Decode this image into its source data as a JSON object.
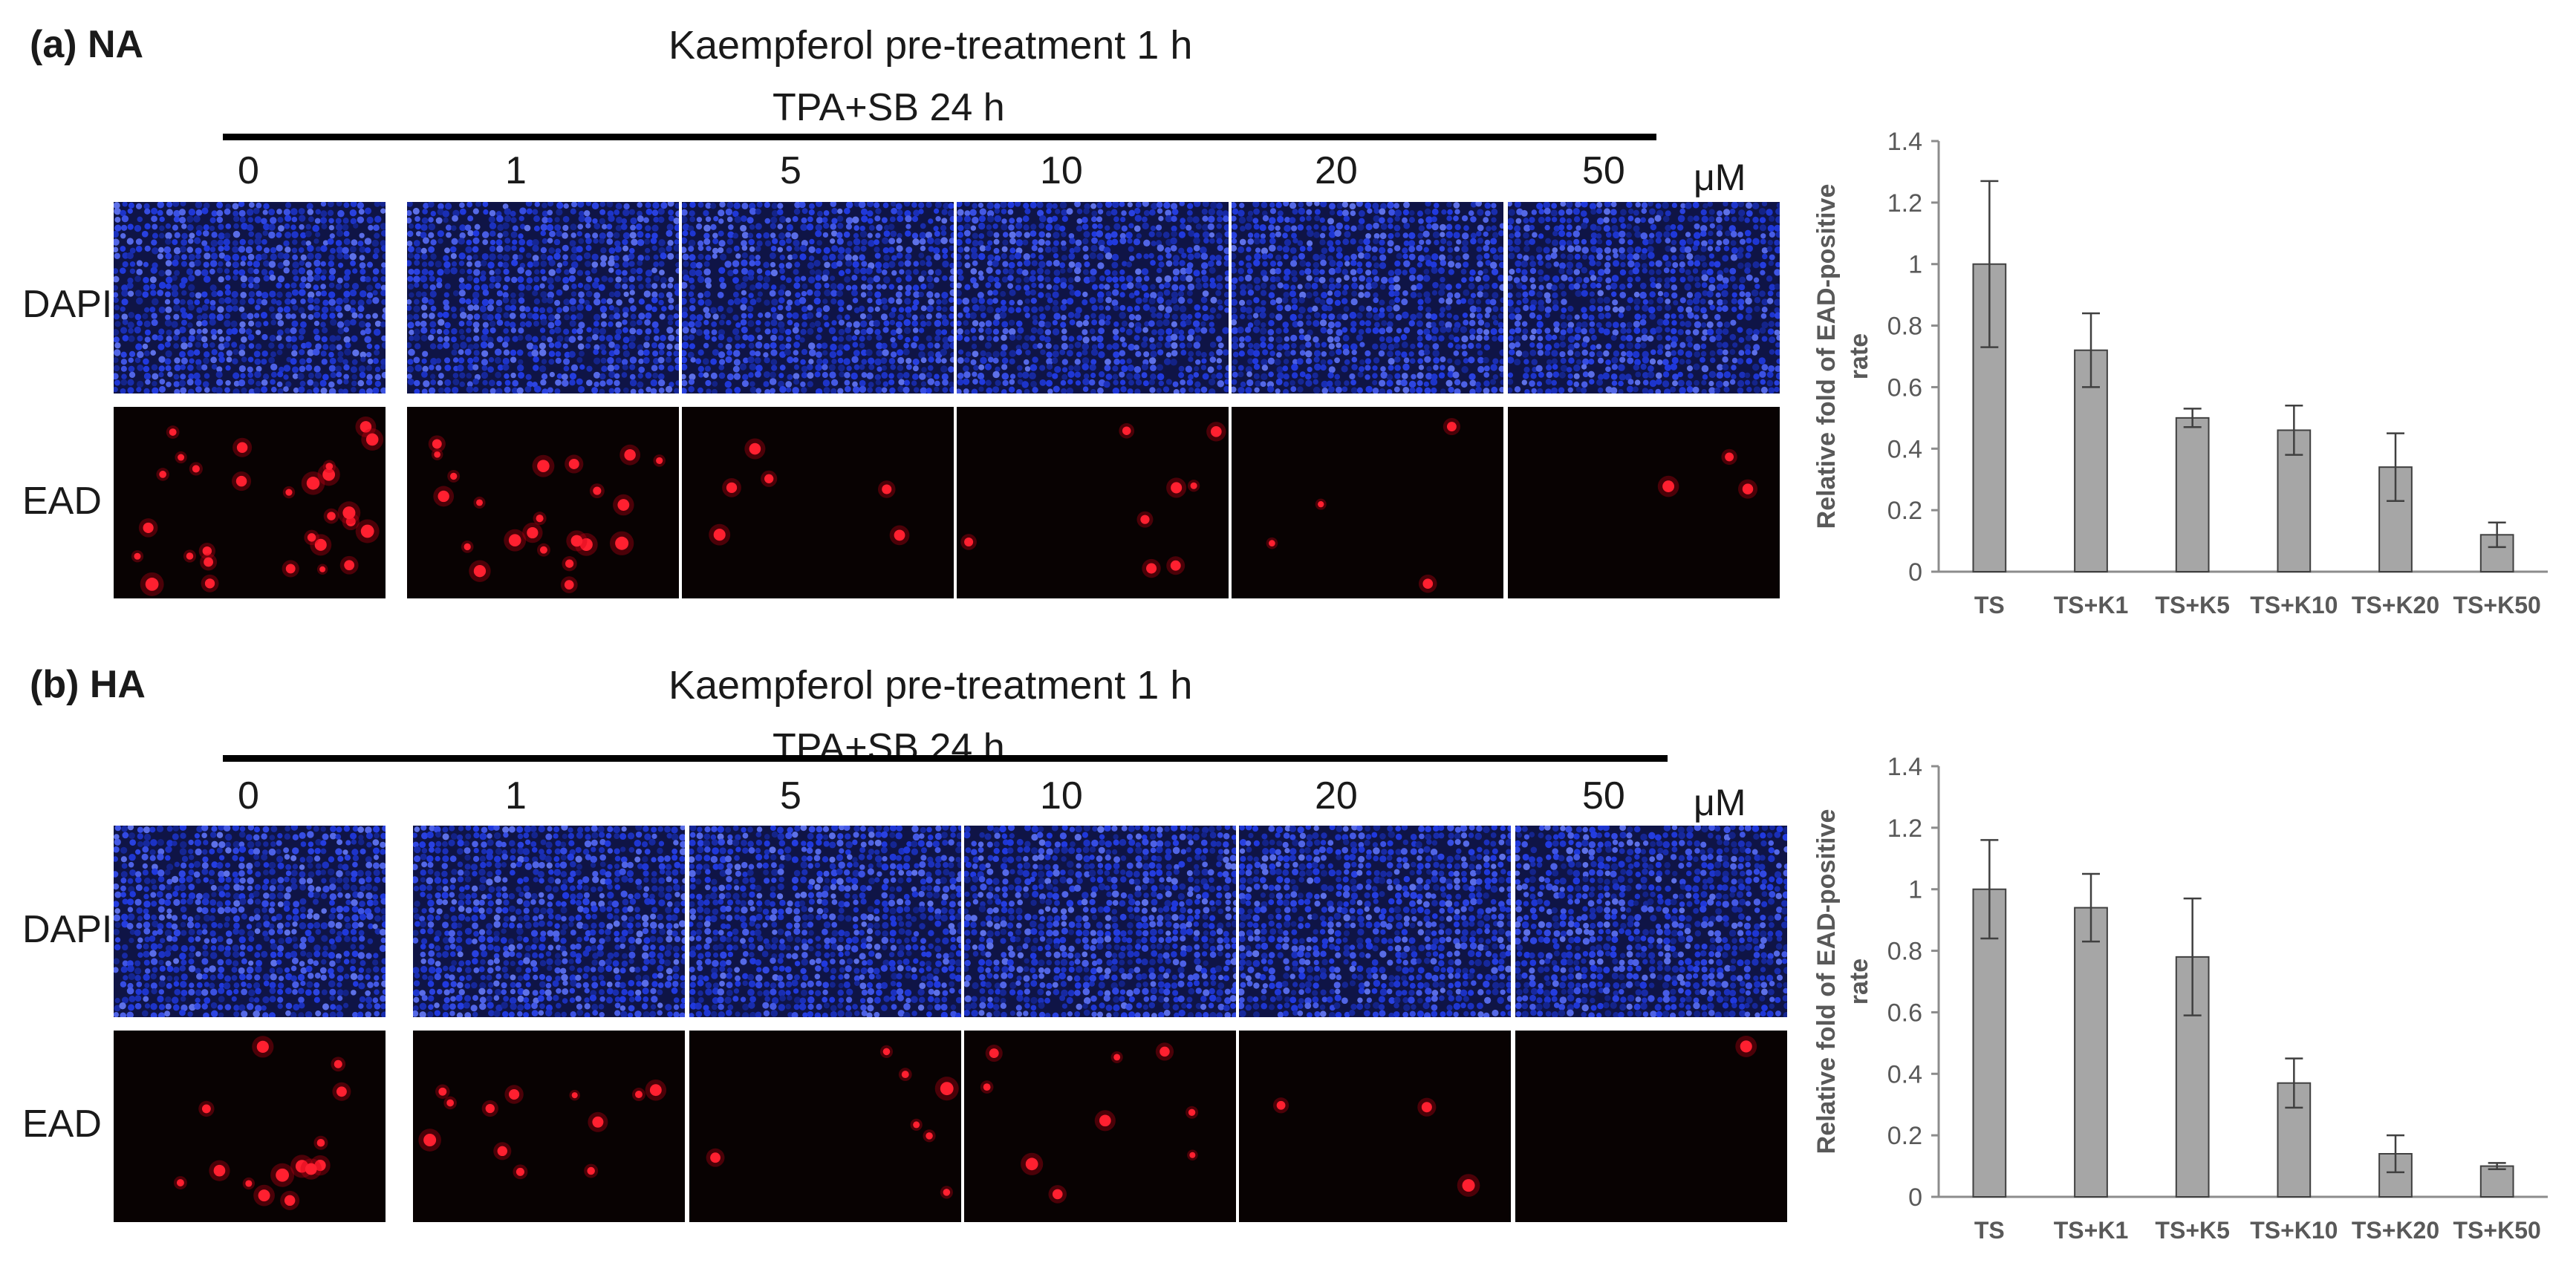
{
  "panels": [
    {
      "label": "(a) NA",
      "pretreatment": "Kaempferol pre-treatment 1 h",
      "treatment": "TPA+SB 24 h",
      "concentrations": [
        "0",
        "1",
        "5",
        "10",
        "20",
        "50"
      ],
      "unit": "μM",
      "rows": [
        "DAPI",
        "EAD"
      ],
      "ead_spot_density": [
        28,
        22,
        6,
        8,
        4,
        3
      ],
      "chart_data": {
        "type": "bar",
        "categories": [
          "TS",
          "TS+K1",
          "TS+K5",
          "TS+K10",
          "TS+K20",
          "TS+K50"
        ],
        "values": [
          1.0,
          0.72,
          0.5,
          0.46,
          0.34,
          0.12
        ],
        "errors": [
          0.27,
          0.12,
          0.03,
          0.08,
          0.11,
          0.04
        ],
        "ylabel": "Relative fold of EAD-positive rate",
        "ylim": [
          0,
          1.4
        ],
        "yticks": [
          "0",
          "0.2",
          "0.4",
          "0.6",
          "0.8",
          "1",
          "1.2",
          "1.4"
        ],
        "bar_color": "#a6a6a6"
      }
    },
    {
      "label": "(b) HA",
      "pretreatment": "Kaempferol  pre-treatment 1 h",
      "treatment": "TPA+SB 24 h",
      "concentrations": [
        "0",
        "1",
        "5",
        "10",
        "20",
        "50"
      ],
      "unit": "μM",
      "rows": [
        "DAPI",
        "EAD"
      ],
      "ead_spot_density": [
        14,
        12,
        7,
        9,
        3,
        1
      ],
      "chart_data": {
        "type": "bar",
        "categories": [
          "TS",
          "TS+K1",
          "TS+K5",
          "TS+K10",
          "TS+K20",
          "TS+K50"
        ],
        "values": [
          1.0,
          0.94,
          0.78,
          0.37,
          0.14,
          0.1
        ],
        "errors": [
          0.16,
          0.11,
          0.19,
          0.08,
          0.06,
          0.01
        ],
        "ylabel": "Relative fold of EAD-positive rate",
        "ylim": [
          0,
          1.4
        ],
        "yticks": [
          "0",
          "0.2",
          "0.4",
          "0.6",
          "0.8",
          "1",
          "1.2",
          "1.4"
        ],
        "bar_color": "#a6a6a6"
      }
    }
  ]
}
